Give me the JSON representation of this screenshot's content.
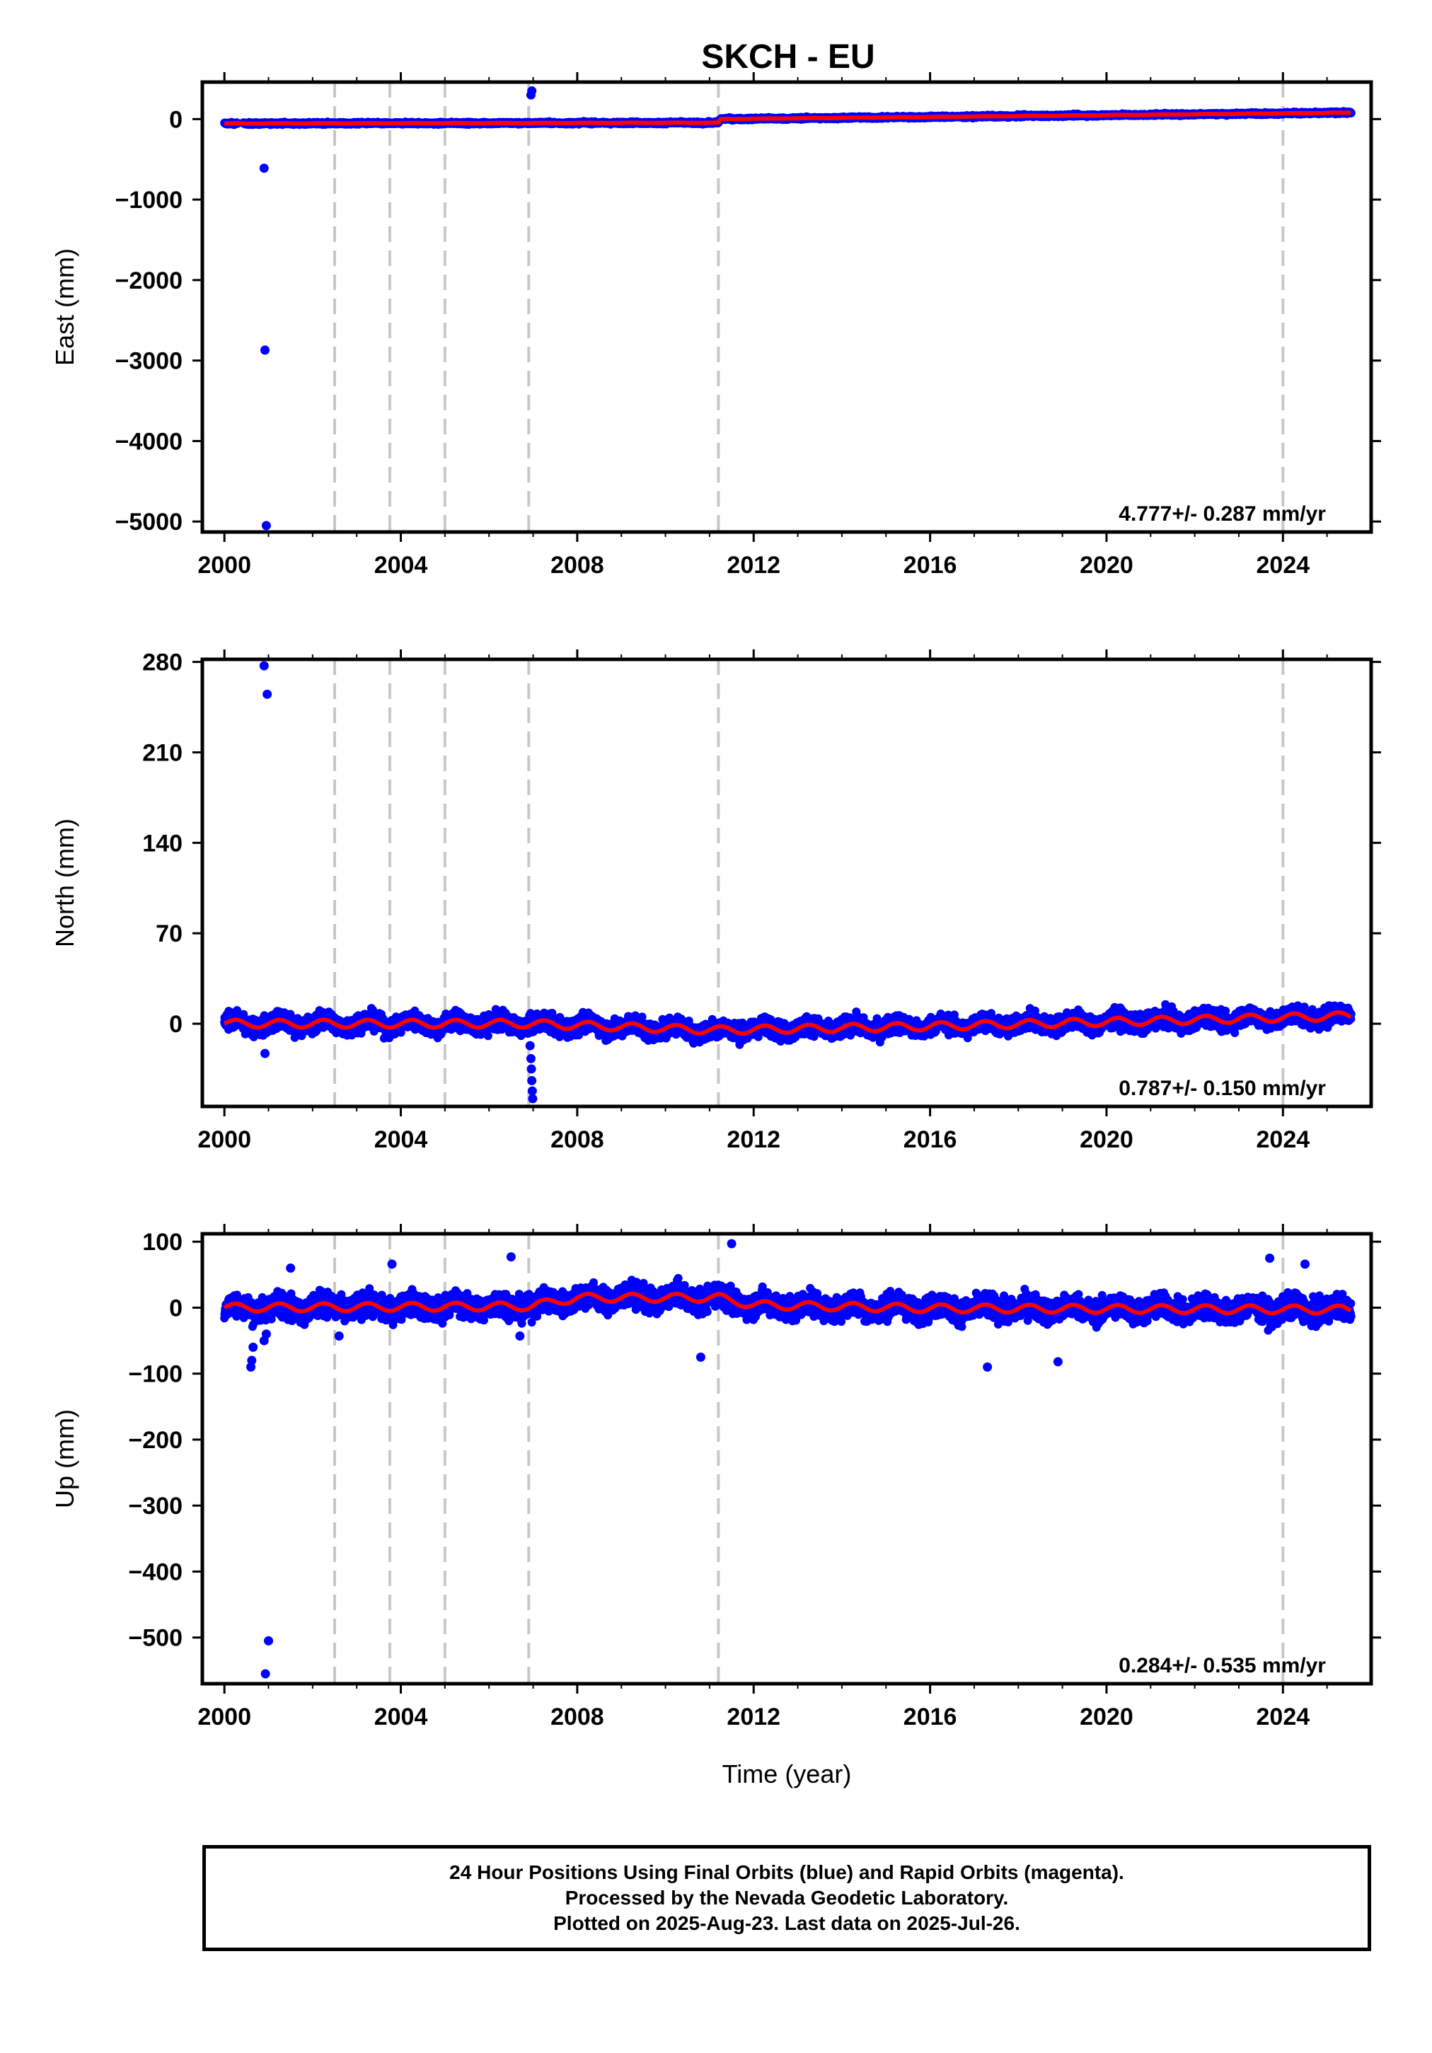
{
  "chart_data": {
    "title": "SKCH - EU",
    "type": "scatter",
    "x_label": "Time (year)",
    "x_ticks": [
      2000,
      2004,
      2008,
      2012,
      2016,
      2020,
      2024
    ],
    "xlim": [
      1999.5,
      2026.0
    ],
    "discontinuities": [
      2002.5,
      2003.75,
      2005.0,
      2006.9,
      2011.2,
      2024.0
    ],
    "colors": {
      "data": "#0000ff",
      "model": "#ff0000",
      "break": "#c8c8c8"
    },
    "panels": [
      {
        "ylabel": "East (mm)",
        "yticks": [
          0,
          -1000,
          -2000,
          -3000,
          -4000,
          -5000
        ],
        "ytick_labels": [
          "0",
          "−1000",
          "−2000",
          "−3000",
          "−4000",
          "−5000"
        ],
        "ylim": [
          -5130,
          460
        ],
        "rate": "4.777+/- 0.287 mm/yr",
        "trend": [
          [
            2000.0,
            -55
          ],
          [
            2011.2,
            -45
          ],
          [
            2011.25,
            0
          ],
          [
            2025.55,
            80
          ]
        ],
        "outliers": [
          [
            2000.9,
            -610
          ],
          [
            2000.92,
            -2870
          ],
          [
            2000.95,
            -5050
          ],
          [
            2006.95,
            300
          ],
          [
            2006.97,
            350
          ]
        ]
      },
      {
        "ylabel": "North (mm)",
        "yticks": [
          280,
          210,
          140,
          70,
          0
        ],
        "ytick_labels": [
          "280",
          "210",
          "140",
          "70",
          "0"
        ],
        "ylim": [
          -64,
          282
        ],
        "rate": "0.787+/- 0.150 mm/yr",
        "trend": [
          [
            2000.0,
            0
          ],
          [
            2006.9,
            0
          ],
          [
            2011.2,
            -5
          ],
          [
            2016.0,
            -2
          ],
          [
            2025.55,
            6
          ]
        ],
        "outliers": [
          [
            2000.9,
            277
          ],
          [
            2000.97,
            255
          ],
          [
            2000.92,
            -23
          ],
          [
            2006.93,
            -17
          ],
          [
            2006.95,
            -27
          ],
          [
            2006.96,
            -35
          ],
          [
            2006.97,
            -44
          ],
          [
            2006.98,
            -52
          ],
          [
            2006.99,
            -58
          ]
        ]
      },
      {
        "ylabel": "Up (mm)",
        "yticks": [
          100,
          0,
          -100,
          -200,
          -300,
          -400,
          -500
        ],
        "ytick_labels": [
          "100",
          "0",
          "−100",
          "−200",
          "−300",
          "−400",
          "−500"
        ],
        "ylim": [
          -570,
          112
        ],
        "rate": "0.284+/- 0.535 mm/yr",
        "trend": [
          [
            2000.0,
            0
          ],
          [
            2006.9,
            2
          ],
          [
            2008.0,
            15
          ],
          [
            2011.2,
            15
          ],
          [
            2012.0,
            4
          ],
          [
            2016.0,
            -1
          ],
          [
            2025.55,
            -3
          ]
        ],
        "outliers": [
          [
            2000.6,
            -90
          ],
          [
            2000.62,
            -80
          ],
          [
            2000.65,
            -60
          ],
          [
            2000.9,
            -50
          ],
          [
            2000.95,
            -40
          ],
          [
            2000.93,
            -555
          ],
          [
            2001.0,
            -505
          ],
          [
            2001.5,
            60
          ],
          [
            2002.6,
            -43
          ],
          [
            2003.8,
            66
          ],
          [
            2006.7,
            -43
          ],
          [
            2006.5,
            77
          ],
          [
            2010.8,
            -75
          ],
          [
            2011.5,
            97
          ],
          [
            2017.3,
            -90
          ],
          [
            2018.9,
            -82
          ],
          [
            2023.7,
            75
          ],
          [
            2024.5,
            66
          ]
        ]
      }
    ]
  },
  "footer": {
    "line1": "24 Hour Positions Using Final Orbits (blue) and Rapid Orbits (magenta).",
    "line2": "Processed by the Nevada Geodetic Laboratory.",
    "line3": "Plotted on 2025-Aug-23. Last data on 2025-Jul-26."
  }
}
